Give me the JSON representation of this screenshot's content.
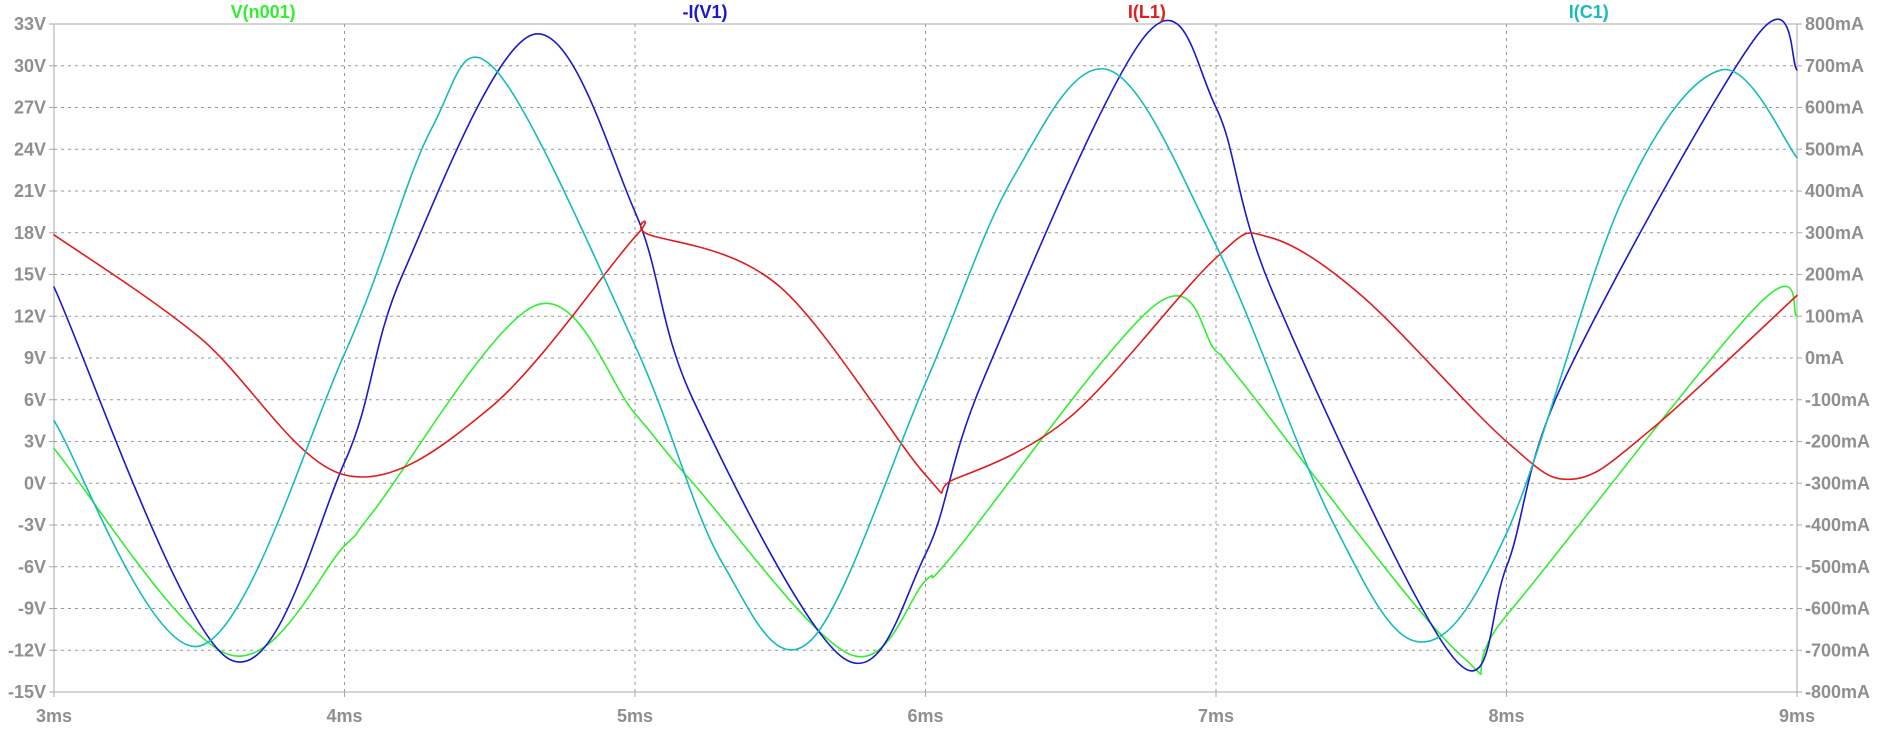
{
  "chart_data": {
    "type": "line",
    "x_tick_labels": [
      "3ms",
      "4ms",
      "5ms",
      "6ms",
      "7ms",
      "8ms",
      "9ms"
    ],
    "x_ticks": [
      3,
      4,
      5,
      6,
      7,
      8,
      9
    ],
    "xlim": [
      3,
      9
    ],
    "x_unit": "ms",
    "y_left_tick_labels": [
      "33V",
      "30V",
      "27V",
      "24V",
      "21V",
      "18V",
      "15V",
      "12V",
      "9V",
      "6V",
      "3V",
      "0V",
      "-3V",
      "-6V",
      "-9V",
      "-12V",
      "-15V"
    ],
    "y_left_ticks": [
      33,
      30,
      27,
      24,
      21,
      18,
      15,
      12,
      9,
      6,
      3,
      0,
      -3,
      -6,
      -9,
      -12,
      -15
    ],
    "ylim_left": [
      -15,
      33
    ],
    "y_left_unit": "V",
    "y_right_tick_labels": [
      "800mA",
      "700mA",
      "600mA",
      "500mA",
      "400mA",
      "300mA",
      "200mA",
      "100mA",
      "0mA",
      "-100mA",
      "-200mA",
      "-300mA",
      "-400mA",
      "-500mA",
      "-600mA",
      "-700mA",
      "-800mA"
    ],
    "y_right_ticks": [
      800,
      700,
      600,
      500,
      400,
      300,
      200,
      100,
      0,
      -100,
      -200,
      -300,
      -400,
      -500,
      -600,
      -700,
      -800
    ],
    "ylim_right": [
      -800,
      800
    ],
    "y_right_unit": "mA",
    "grid": true,
    "legend_placement": "top",
    "series": [
      {
        "name": "V(n001)",
        "color": "#33ee33",
        "axis": "left",
        "x": [
          3.0,
          3.6,
          4.0,
          4.1,
          4.66,
          5.0,
          5.2,
          5.74,
          6.0,
          6.1,
          6.79,
          7.0,
          7.1,
          7.84,
          8.0,
          8.86,
          9.0
        ],
        "y": [
          2.5,
          -12.3,
          -4.5,
          -2.0,
          12.8,
          5.0,
          0.0,
          -12.3,
          -7.0,
          -5.0,
          12.8,
          9.5,
          7.0,
          -12.3,
          -9.5,
          12.7,
          12.0
        ]
      },
      {
        "name": "-I(V1)",
        "color": "#1a1acc",
        "axis": "right",
        "x": [
          3.0,
          3.6,
          4.0,
          4.2,
          4.65,
          5.0,
          5.2,
          5.72,
          6.0,
          6.2,
          6.76,
          7.0,
          7.2,
          7.82,
          8.0,
          8.2,
          8.86,
          9.0
        ],
        "y": [
          170,
          -720,
          -250,
          200,
          775,
          350,
          -100,
          -720,
          -470,
          -50,
          775,
          600,
          150,
          -720,
          -500,
          -50,
          770,
          690
        ]
      },
      {
        "name": "I(L1)",
        "color": "#e11d1d",
        "axis": "right",
        "x": [
          3.0,
          3.5,
          4.0,
          4.5,
          5.0,
          5.05,
          5.5,
          6.0,
          6.1,
          6.5,
          7.0,
          7.18,
          7.5,
          8.0,
          8.23,
          8.5,
          9.0
        ],
        "y": [
          295,
          50,
          -280,
          -120,
          290,
          295,
          170,
          -280,
          -290,
          -140,
          240,
          290,
          150,
          -200,
          -290,
          -170,
          150
        ]
      },
      {
        "name": "I(C1)",
        "color": "#17bbbb",
        "axis": "right",
        "x": [
          3.0,
          3.5,
          4.0,
          4.3,
          4.52,
          5.0,
          5.3,
          5.6,
          6.0,
          6.3,
          6.63,
          7.0,
          7.4,
          7.7,
          8.0,
          8.4,
          8.74,
          9.0
        ],
        "y": [
          -150,
          -690,
          10,
          550,
          690,
          30,
          -490,
          -680,
          -60,
          430,
          690,
          270,
          -390,
          -680,
          -420,
          380,
          690,
          480
        ]
      }
    ]
  }
}
